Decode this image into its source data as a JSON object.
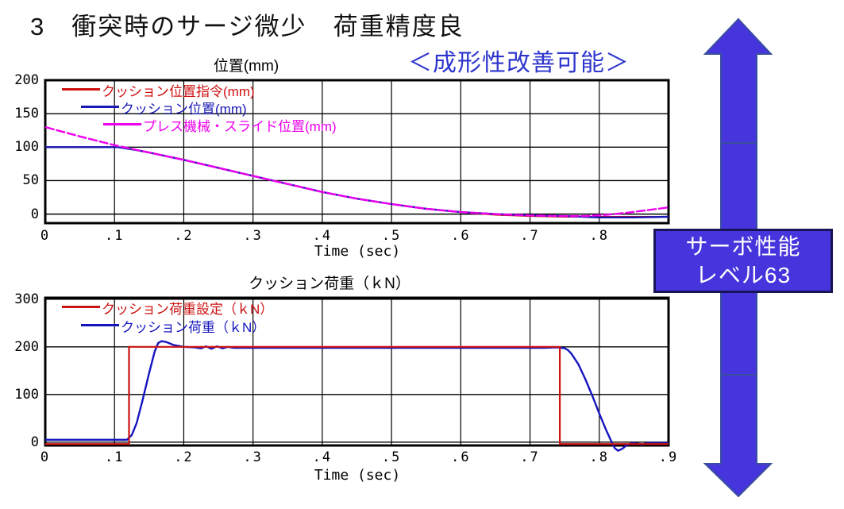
{
  "page": {
    "title": "3　衝突時のサージ微少　荷重精度良",
    "subtitle": "＜成形性改善可能＞",
    "subtitle_color": "#2e35cd",
    "arrow_badge": {
      "line1": "サーボ性能",
      "line2": "レベル63",
      "fill": "#4634dc",
      "border_color": "#181457",
      "text_color": "#ffffff",
      "arrow_fill": "#4634dc",
      "arrow_border": "#3a4e9e"
    }
  },
  "chart_data": [
    {
      "type": "line",
      "title": "位置(mm)",
      "xlabel": "Time (sec)",
      "xlim": [
        0,
        0.9
      ],
      "ylim": [
        -13.5,
        200
      ],
      "grid": true,
      "legend_position": "top-left-inside",
      "xticks": {
        "values": [
          0,
          0.1,
          0.2,
          0.3,
          0.4,
          0.5,
          0.6,
          0.7,
          0.8
        ],
        "labels": [
          "0",
          ".1",
          ".2",
          ".3",
          ".4",
          ".5",
          ".6",
          ".7",
          ".8"
        ]
      },
      "yticks": {
        "values": [
          0,
          50,
          100,
          150,
          200
        ],
        "labels": [
          "0",
          "50",
          "100",
          "150",
          "200"
        ]
      },
      "series": [
        {
          "name": "クッション位置指令(mm)",
          "color": "#d01010",
          "points": [
            [
              0,
              100
            ],
            [
              0.105,
              100
            ],
            [
              0.13,
              96
            ],
            [
              0.15,
              92
            ],
            [
              0.2,
              81
            ],
            [
              0.25,
              69
            ],
            [
              0.3,
              57
            ],
            [
              0.35,
              45
            ],
            [
              0.4,
              33
            ],
            [
              0.45,
              23
            ],
            [
              0.5,
              15
            ],
            [
              0.55,
              8
            ],
            [
              0.6,
              3
            ],
            [
              0.65,
              -1
            ],
            [
              0.7,
              -3
            ],
            [
              0.75,
              -4
            ],
            [
              0.88,
              -4
            ]
          ]
        },
        {
          "name": "クッション位置(mm)",
          "color": "#1818b4",
          "points": [
            [
              0,
              100
            ],
            [
              0.105,
              100
            ],
            [
              0.13,
              96
            ],
            [
              0.15,
              92
            ],
            [
              0.2,
              81
            ],
            [
              0.25,
              69
            ],
            [
              0.3,
              57
            ],
            [
              0.35,
              45
            ],
            [
              0.4,
              33
            ],
            [
              0.45,
              23
            ],
            [
              0.5,
              15
            ],
            [
              0.55,
              8
            ],
            [
              0.6,
              3
            ],
            [
              0.65,
              0
            ],
            [
              0.7,
              -2
            ],
            [
              0.75,
              -3
            ],
            [
              0.8,
              -5
            ],
            [
              0.85,
              -5
            ],
            [
              0.9,
              -4
            ]
          ]
        },
        {
          "name": "プレス機械・スライド位置(mm)",
          "color": "#ee00ee",
          "points": [
            [
              0,
              130
            ],
            [
              0.05,
              116
            ],
            [
              0.1,
              103
            ],
            [
              0.15,
              92
            ],
            [
              0.2,
              81
            ],
            [
              0.25,
              69
            ],
            [
              0.3,
              57
            ],
            [
              0.35,
              45
            ],
            [
              0.4,
              33
            ],
            [
              0.45,
              23
            ],
            [
              0.5,
              15
            ],
            [
              0.55,
              8
            ],
            [
              0.6,
              3
            ],
            [
              0.65,
              0
            ],
            [
              0.7,
              -2
            ],
            [
              0.74,
              -3
            ],
            [
              0.78,
              -3
            ],
            [
              0.81,
              -1
            ],
            [
              0.84,
              2
            ],
            [
              0.87,
              6
            ],
            [
              0.9,
              10
            ]
          ]
        }
      ]
    },
    {
      "type": "line",
      "title": "クッション荷重（ｋN）",
      "xlabel": "Time (sec)",
      "xlim": [
        0,
        0.9
      ],
      "ylim": [
        -7,
        303
      ],
      "grid": true,
      "legend_position": "top-left-inside",
      "xticks": {
        "values": [
          0,
          0.1,
          0.2,
          0.3,
          0.4,
          0.5,
          0.6,
          0.7,
          0.8,
          0.9
        ],
        "labels": [
          "0",
          ".1",
          ".2",
          ".3",
          ".4",
          ".5",
          ".6",
          ".7",
          ".8",
          ".9"
        ]
      },
      "yticks": {
        "values": [
          0,
          100,
          200,
          300
        ],
        "labels": [
          "0",
          "100",
          "200",
          "300"
        ]
      },
      "series": [
        {
          "name": "クッション荷重設定（ｋN）",
          "color": "#cc1111",
          "points": [
            [
              0,
              -4
            ],
            [
              0.121,
              -4
            ],
            [
              0.121,
              200
            ],
            [
              0.743,
              200
            ],
            [
              0.743,
              -4
            ],
            [
              0.9,
              -4
            ]
          ]
        },
        {
          "name": "クッション荷重（ｋN）",
          "color": "#1515c0",
          "points": [
            [
              0,
              5
            ],
            [
              0.118,
              5
            ],
            [
              0.125,
              15
            ],
            [
              0.132,
              40
            ],
            [
              0.14,
              85
            ],
            [
              0.15,
              145
            ],
            [
              0.158,
              190
            ],
            [
              0.163,
              208
            ],
            [
              0.168,
              212
            ],
            [
              0.175,
              210
            ],
            [
              0.185,
              204
            ],
            [
              0.2,
              200
            ],
            [
              0.215,
              199
            ],
            [
              0.225,
              197
            ],
            [
              0.232,
              201
            ],
            [
              0.24,
              196
            ],
            [
              0.248,
              201
            ],
            [
              0.256,
              197
            ],
            [
              0.264,
              200
            ],
            [
              0.272,
              198
            ],
            [
              0.28,
              198
            ],
            [
              0.35,
              198
            ],
            [
              0.45,
              198
            ],
            [
              0.55,
              198
            ],
            [
              0.65,
              198
            ],
            [
              0.72,
              198
            ],
            [
              0.74,
              199
            ],
            [
              0.75,
              197
            ],
            [
              0.755,
              193
            ],
            [
              0.76,
              185
            ],
            [
              0.77,
              163
            ],
            [
              0.78,
              132
            ],
            [
              0.79,
              97
            ],
            [
              0.8,
              60
            ],
            [
              0.81,
              25
            ],
            [
              0.817,
              3
            ],
            [
              0.822,
              -12
            ],
            [
              0.827,
              -18
            ],
            [
              0.833,
              -14
            ],
            [
              0.84,
              -6
            ],
            [
              0.848,
              -2
            ],
            [
              0.855,
              -3
            ],
            [
              0.862,
              -5
            ],
            [
              0.87,
              -2
            ],
            [
              0.88,
              -2
            ],
            [
              0.9,
              -2
            ]
          ]
        }
      ]
    }
  ]
}
